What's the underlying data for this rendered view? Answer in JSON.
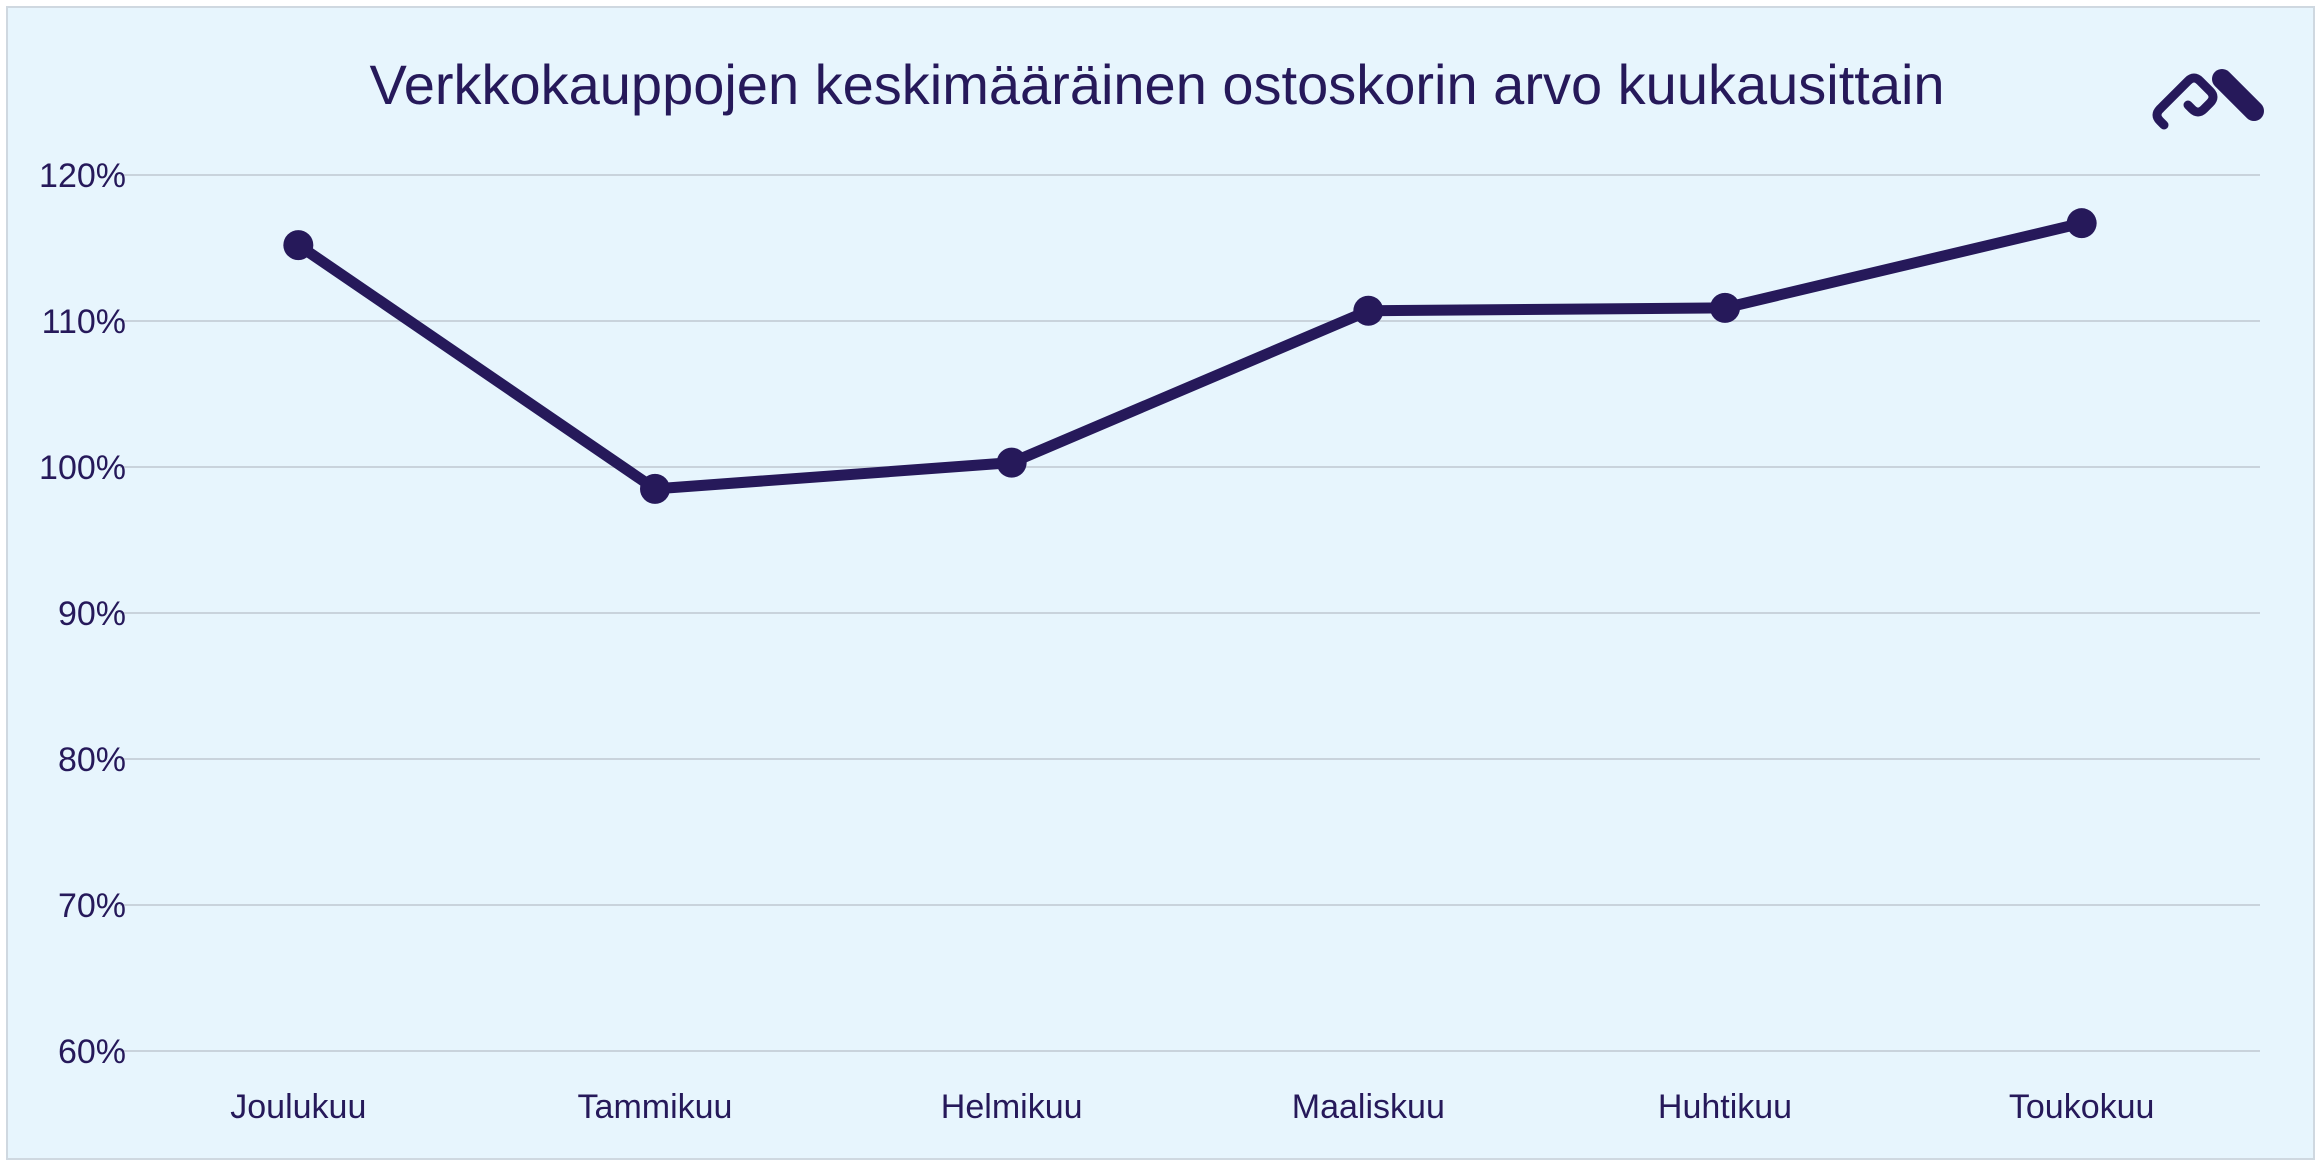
{
  "chart_data": {
    "type": "line",
    "title": "Verkkokauppojen keskimääräinen ostoskorin arvo kuukausittain",
    "xlabel": "",
    "ylabel": "",
    "categories": [
      "Joulukuu",
      "Tammikuu",
      "Helmikuu",
      "Maaliskuu",
      "Huhtikuu",
      "Toukokuu"
    ],
    "series": [
      {
        "values": [
          115.2,
          98.5,
          100.3,
          110.7,
          110.9,
          116.7
        ]
      }
    ],
    "ylim": [
      60,
      120
    ],
    "yticks": [
      60,
      70,
      80,
      90,
      100,
      110,
      120
    ],
    "ytick_labels": [
      "60%",
      "70%",
      "80%",
      "90%",
      "100%",
      "110%",
      "120%"
    ],
    "grid": true,
    "legend": "none"
  },
  "colors": {
    "background": "#e7f5fd",
    "series": "#26195a",
    "text": "#26195a",
    "grid": "#c9d3dc"
  },
  "logo": {
    "icon": "brand-logo-icon"
  }
}
